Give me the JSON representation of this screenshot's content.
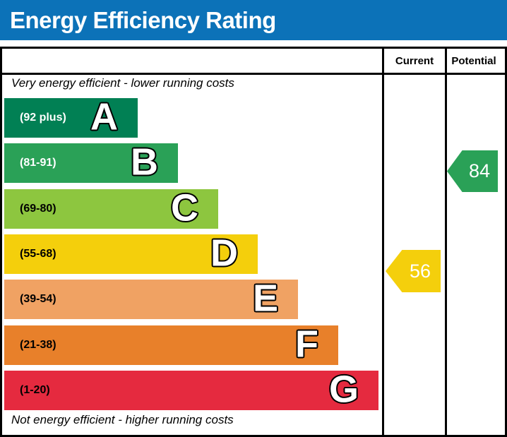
{
  "title": "Energy Efficiency Rating",
  "columns": {
    "current": "Current",
    "potential": "Potential"
  },
  "captions": {
    "top": "Very energy efficient - lower running costs",
    "bottom": "Not energy efficient - higher running costs"
  },
  "colors": {
    "title_bar_bg": "#0c72b8",
    "title_text": "#ffffff",
    "table_border": "#000000"
  },
  "chart_data": {
    "type": "bar",
    "title": "Energy Efficiency Rating",
    "categories": [
      "A",
      "B",
      "C",
      "D",
      "E",
      "F",
      "G"
    ],
    "bands": [
      {
        "letter": "A",
        "range": "(92 plus)",
        "min": 92,
        "max": 100,
        "color": "#018054",
        "label_color": "#ffffff"
      },
      {
        "letter": "B",
        "range": "(81-91)",
        "min": 81,
        "max": 91,
        "color": "#2aa157",
        "label_color": "#ffffff"
      },
      {
        "letter": "C",
        "range": "(69-80)",
        "min": 69,
        "max": 80,
        "color": "#8dc63f",
        "label_color": "#000000"
      },
      {
        "letter": "D",
        "range": "(55-68)",
        "min": 55,
        "max": 68,
        "color": "#f4cf0c",
        "label_color": "#000000"
      },
      {
        "letter": "E",
        "range": "(39-54)",
        "min": 39,
        "max": 54,
        "color": "#f0a263",
        "label_color": "#000000"
      },
      {
        "letter": "F",
        "range": "(21-38)",
        "min": 21,
        "max": 38,
        "color": "#e8802a",
        "label_color": "#000000"
      },
      {
        "letter": "G",
        "range": "(1-20)",
        "min": 1,
        "max": 20,
        "color": "#e52a3f",
        "label_color": "#000000"
      }
    ],
    "markers": {
      "current": {
        "value": 56,
        "band": "D",
        "color": "#f4cf0c"
      },
      "potential": {
        "value": 84,
        "band": "B",
        "color": "#2aa157"
      }
    }
  }
}
